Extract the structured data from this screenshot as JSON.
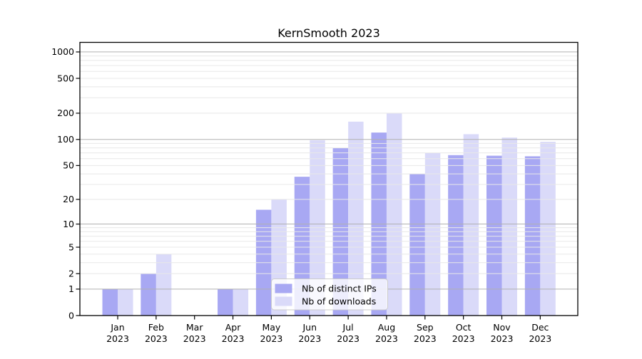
{
  "title": "KernSmooth 2023",
  "colors": {
    "bar_ips": "#a8a8f3",
    "bar_downloads": "#dadaf9",
    "grid_major": "#b0b0b0",
    "grid_minor": "#e8e8e8",
    "axis": "#000000",
    "legend_border": "#cccccc",
    "background": "#ffffff"
  },
  "chart_data": {
    "type": "bar",
    "title": "KernSmooth 2023",
    "x_categories": [
      "Jan",
      "Feb",
      "Mar",
      "Apr",
      "May",
      "Jun",
      "Jul",
      "Aug",
      "Sep",
      "Oct",
      "Nov",
      "Dec"
    ],
    "x_year": "2023",
    "series": [
      {
        "name": "Nb of distinct IPs",
        "color": "#a8a8f3",
        "values": [
          1,
          2,
          0,
          1,
          15,
          37,
          80,
          120,
          40,
          66,
          65,
          64
        ]
      },
      {
        "name": "Nb of downloads",
        "color": "#dadaf9",
        "values": [
          1,
          4,
          0,
          1,
          20,
          98,
          160,
          200,
          70,
          115,
          105,
          94
        ]
      }
    ],
    "y_scale": "log1p",
    "ylim": [
      0,
      1285
    ],
    "y_ticks": [
      {
        "label": "1000",
        "value": 1000
      },
      {
        "label": "500",
        "value": 500
      },
      {
        "label": "200",
        "value": 200
      },
      {
        "label": "100",
        "value": 100
      },
      {
        "label": "50",
        "value": 50
      },
      {
        "label": "20",
        "value": 20
      },
      {
        "label": "10",
        "value": 10
      },
      {
        "label": "5",
        "value": 5
      },
      {
        "label": "2",
        "value": 2
      },
      {
        "label": "1",
        "value": 1
      },
      {
        "label": "0",
        "value": 0
      }
    ],
    "grid": true,
    "grid_minor_values": [
      2,
      3,
      4,
      5,
      6,
      7,
      8,
      9,
      20,
      30,
      40,
      50,
      60,
      70,
      80,
      90,
      200,
      300,
      400,
      500,
      600,
      700,
      800,
      900
    ],
    "grid_major_values": [
      1,
      10,
      100,
      1000
    ],
    "legend_position": "inside lower center"
  }
}
